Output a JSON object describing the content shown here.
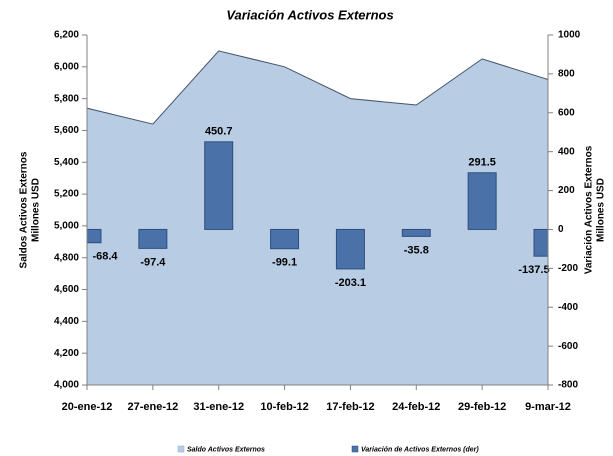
{
  "chart_data": {
    "type": "area_bar",
    "title": "Variación Activos Externos",
    "y_label": [
      "Saldos Activos Externos",
      "Millones USD"
    ],
    "y2_label": [
      "Variación Activos Externos",
      "Millones USD"
    ],
    "categories": [
      "20-ene-12",
      "27-ene-12",
      "31-ene-12",
      "10-feb-12",
      "17-feb-12",
      "24-feb-12",
      "29-feb-12",
      "9-mar-12"
    ],
    "series": [
      {
        "name": "Saldo Activos Externos",
        "color": "#b8cce4",
        "type": "area",
        "values": [
          5740,
          5640,
          6100,
          6000,
          5800,
          5760,
          6050,
          5920
        ]
      },
      {
        "name": "Variación de Activos Externos (der)",
        "color": "#4a72a8",
        "type": "bar",
        "axis": "y2",
        "values": [
          -68.4,
          -97.4,
          450.7,
          -99.1,
          -203.1,
          -35.8,
          291.5,
          -137.5
        ]
      }
    ],
    "ylim": [
      4000,
      6200
    ],
    "yticks": [
      {
        "value": 4000,
        "label": "4,000"
      },
      {
        "value": 4200,
        "label": "4,200"
      },
      {
        "value": 4400,
        "label": "4,400"
      },
      {
        "value": 4600,
        "label": "4,600"
      },
      {
        "value": 4800,
        "label": "4,800"
      },
      {
        "value": 5000,
        "label": "5,000"
      },
      {
        "value": 5200,
        "label": "5,200"
      },
      {
        "value": 5400,
        "label": "5,400"
      },
      {
        "value": 5600,
        "label": "5,600"
      },
      {
        "value": 5800,
        "label": "5,800"
      },
      {
        "value": 6000,
        "label": "6,000"
      },
      {
        "value": 6200,
        "label": "6,200"
      }
    ],
    "y2lim": [
      -800,
      1000
    ],
    "y2ticks": [
      -800,
      -600,
      -400,
      -200,
      0,
      200,
      400,
      600,
      800,
      1000
    ]
  }
}
